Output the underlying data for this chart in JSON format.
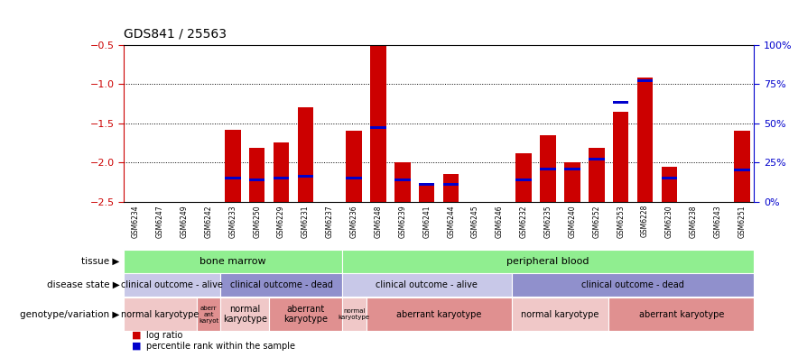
{
  "title": "GDS841 / 25563",
  "samples": [
    "GSM6234",
    "GSM6247",
    "GSM6249",
    "GSM6242",
    "GSM6233",
    "GSM6250",
    "GSM6229",
    "GSM6231",
    "GSM6237",
    "GSM6236",
    "GSM6248",
    "GSM6239",
    "GSM6241",
    "GSM6244",
    "GSM6245",
    "GSM6246",
    "GSM6232",
    "GSM6235",
    "GSM6240",
    "GSM6252",
    "GSM6253",
    "GSM6228",
    "GSM6230",
    "GSM6238",
    "GSM6243",
    "GSM6251"
  ],
  "log_ratio": [
    0,
    0,
    0,
    0,
    -1.58,
    -1.82,
    -1.75,
    -1.3,
    0,
    -1.6,
    -0.5,
    -2.0,
    -2.3,
    -2.15,
    0,
    0,
    -1.88,
    -1.65,
    -2.0,
    -1.82,
    -1.35,
    -0.92,
    -2.05,
    0,
    0,
    -1.6
  ],
  "percentile": [
    0,
    0,
    0,
    0,
    15,
    14,
    15,
    16,
    0,
    15,
    47,
    14,
    11,
    11,
    0,
    0,
    14,
    21,
    21,
    27,
    63,
    77,
    15,
    0,
    0,
    20
  ],
  "ylim_left": [
    -2.5,
    -0.5
  ],
  "ylim_right": [
    0,
    100
  ],
  "yticks_left": [
    -2.5,
    -2.0,
    -1.5,
    -1.0,
    -0.5
  ],
  "yticks_right": [
    0,
    25,
    50,
    75,
    100
  ],
  "tissue_spans": [
    {
      "label": "bone marrow",
      "start": 0,
      "end": 9,
      "color": "#90EE90"
    },
    {
      "label": "peripheral blood",
      "start": 9,
      "end": 26,
      "color": "#90EE90"
    }
  ],
  "disease_spans": [
    {
      "label": "clinical outcome - alive",
      "start": 0,
      "end": 4,
      "color": "#C8C8E8"
    },
    {
      "label": "clinical outcome - dead",
      "start": 4,
      "end": 9,
      "color": "#9090CC"
    },
    {
      "label": "clinical outcome - alive",
      "start": 9,
      "end": 16,
      "color": "#C8C8E8"
    },
    {
      "label": "clinical outcome - dead",
      "start": 16,
      "end": 26,
      "color": "#9090CC"
    }
  ],
  "genotype_spans": [
    {
      "label": "normal karyotype",
      "start": 0,
      "end": 3,
      "color": "#F0C8C8"
    },
    {
      "label": "aberr\nant\nkaryot",
      "start": 3,
      "end": 4,
      "color": "#E09090"
    },
    {
      "label": "normal\nkaryotype",
      "start": 4,
      "end": 6,
      "color": "#F0C8C8"
    },
    {
      "label": "aberrant\nkaryotype",
      "start": 6,
      "end": 9,
      "color": "#E09090"
    },
    {
      "label": "normal\nkaryotype",
      "start": 9,
      "end": 10,
      "color": "#F0C8C8"
    },
    {
      "label": "aberrant karyotype",
      "start": 10,
      "end": 16,
      "color": "#E09090"
    },
    {
      "label": "normal karyotype",
      "start": 16,
      "end": 20,
      "color": "#F0C8C8"
    },
    {
      "label": "aberrant karyotype",
      "start": 20,
      "end": 26,
      "color": "#E09090"
    }
  ],
  "bar_color": "#CC0000",
  "percentile_color": "#0000CC",
  "background_color": "#ffffff",
  "axis_left_color": "#CC0000",
  "axis_right_color": "#0000CC",
  "grid_ticks": [
    -1.0,
    -1.5,
    -2.0
  ],
  "xticklabel_bg": "#C8C8C8",
  "row_label_left": [
    {
      "text": "tissue",
      "row": "tissue"
    },
    {
      "text": "disease state",
      "row": "disease"
    },
    {
      "text": "genotype/variation",
      "row": "geno"
    }
  ]
}
